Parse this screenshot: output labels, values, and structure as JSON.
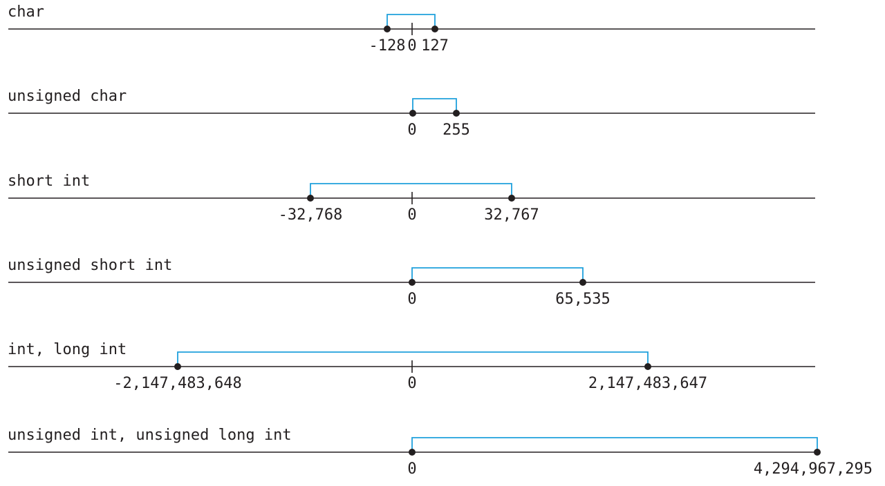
{
  "colors": {
    "line": "#231f20",
    "bracket": "#1ea0dc",
    "text": "#231f20",
    "background": "#ffffff"
  },
  "rows": [
    {
      "type_label": "char",
      "min": -128,
      "max": 127,
      "min_label": "-128",
      "zero_label": "0",
      "max_label": "127",
      "starts_at_zero": false
    },
    {
      "type_label": "unsigned char",
      "min": 0,
      "max": 255,
      "min_label": "0",
      "zero_label": "0",
      "max_label": "255",
      "starts_at_zero": true
    },
    {
      "type_label": "short int",
      "min": -32768,
      "max": 32767,
      "min_label": "-32,768",
      "zero_label": "0",
      "max_label": "32,767",
      "starts_at_zero": false
    },
    {
      "type_label": "unsigned short int",
      "min": 0,
      "max": 65535,
      "min_label": "0",
      "zero_label": "0",
      "max_label": "65,535",
      "starts_at_zero": true
    },
    {
      "type_label": "int, long int",
      "min": -2147483648,
      "max": 2147483647,
      "min_label": "-2,147,483,648",
      "zero_label": "0",
      "max_label": "2,147,483,647",
      "starts_at_zero": false
    },
    {
      "type_label": "unsigned int, unsigned long int",
      "min": 0,
      "max": 4294967295,
      "min_label": "0",
      "zero_label": "0",
      "max_label": "4,294,967,295",
      "starts_at_zero": true
    }
  ]
}
